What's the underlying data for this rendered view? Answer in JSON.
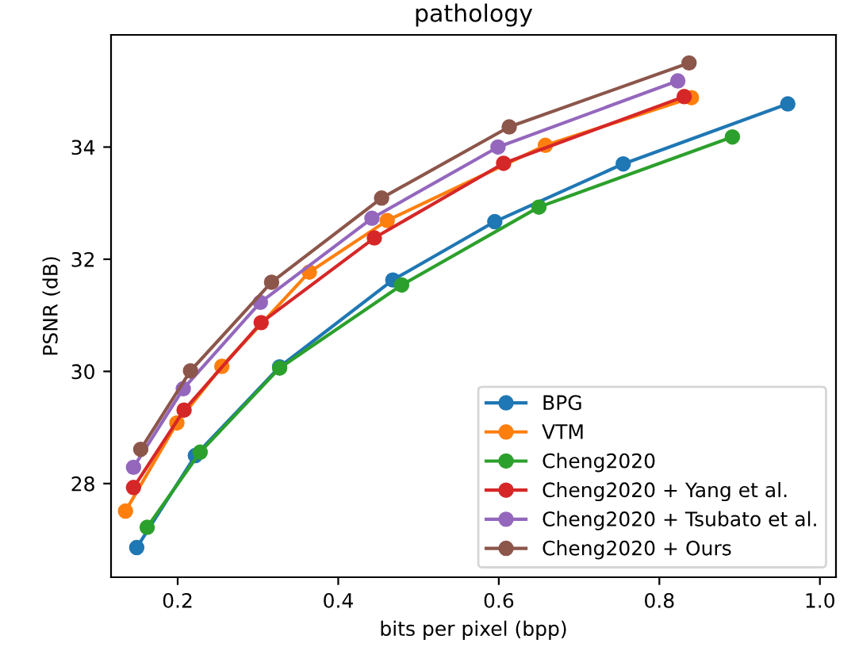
{
  "chart_data": {
    "type": "line",
    "title": "pathology",
    "xlabel": "bits per pixel (bpp)",
    "ylabel": "PSNR (dB)",
    "xlim": [
      0.117,
      1.02
    ],
    "ylim": [
      26.33,
      36.0
    ],
    "xticks": [
      0.2,
      0.4,
      0.6,
      0.8,
      {
        "value": 1.0,
        "label": "1.0"
      }
    ],
    "yticks": [
      28,
      30,
      32,
      34
    ],
    "marker": "circle",
    "legend": "bottom right",
    "grid": false,
    "series": [
      {
        "name": "BPG",
        "color": "#1f77b4",
        "x": [
          0.149,
          0.222,
          0.327,
          0.468,
          0.595,
          0.755,
          0.96
        ],
        "values": [
          26.86,
          28.5,
          30.08,
          31.63,
          32.67,
          33.7,
          34.77
        ]
      },
      {
        "name": "VTM",
        "color": "#ff7f0e",
        "x": [
          0.135,
          0.199,
          0.255,
          0.364,
          0.461,
          0.658,
          0.84
        ],
        "values": [
          27.51,
          29.08,
          30.09,
          31.77,
          32.69,
          34.03,
          34.88
        ]
      },
      {
        "name": "Cheng2020",
        "color": "#2ca02c",
        "x": [
          0.162,
          0.228,
          0.327,
          0.479,
          0.65,
          0.891
        ],
        "values": [
          27.22,
          28.56,
          30.06,
          31.54,
          32.93,
          34.18
        ]
      },
      {
        "name": "Cheng2020 + Yang et al.",
        "color": "#d62728",
        "x": [
          0.145,
          0.208,
          0.304,
          0.445,
          0.606,
          0.831
        ],
        "values": [
          27.93,
          29.31,
          30.87,
          32.38,
          33.71,
          34.9
        ]
      },
      {
        "name": "Cheng2020 + Tsubato et al.",
        "color": "#9467bd",
        "x": [
          0.145,
          0.207,
          0.303,
          0.442,
          0.599,
          0.823
        ],
        "values": [
          28.29,
          29.69,
          31.23,
          32.73,
          34.0,
          35.18
        ]
      },
      {
        "name": "Cheng2020 + Ours",
        "color": "#8c564b",
        "x": [
          0.154,
          0.216,
          0.317,
          0.454,
          0.613,
          0.837
        ],
        "values": [
          28.61,
          30.01,
          31.59,
          33.09,
          34.36,
          35.5
        ]
      }
    ]
  }
}
